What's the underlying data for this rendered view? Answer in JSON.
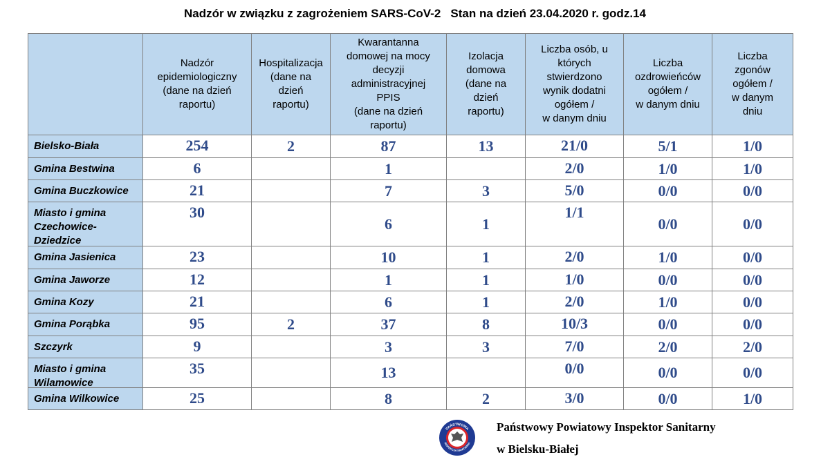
{
  "header": {
    "title": "Nadzór w związku z zagrożeniem SARS-CoV-2   Stan na dzień 23.04.2020 r. godz.14"
  },
  "table": {
    "headers": [
      "Nadzór\nepidemiologiczny\n(dane na dzień\nraportu)",
      "Hospitalizacja\n(dane na\ndzień\nraportu)",
      "Kwarantanna\ndomowej na mocy\ndecyzji\nadministracyjnej\nPPIS\n(dane na dzień\nraportu)",
      "Izolacja\ndomowa\n(dane na\ndzień\nraportu)",
      "Liczba osób, u\nktórych\nstwierdzono\nwynik dodatni\nogółem /\nw danym dniu",
      "Liczba\nozdrowieńców\nogółem /\nw danym dniu",
      "Liczba\nzgonów\nogółem /\nw danym\ndniu"
    ],
    "rows": [
      {
        "name": "Bielsko-Biała",
        "cells": [
          254,
          2,
          87,
          13,
          "21/0",
          "5/1",
          "1/0"
        ]
      },
      {
        "name": "Gmina Bestwina",
        "cells": [
          6,
          null,
          1,
          null,
          "2/0",
          "1/0",
          "1/0"
        ]
      },
      {
        "name": "Gmina Buczkowice",
        "cells": [
          21,
          null,
          7,
          3,
          "5/0",
          "0/0",
          "0/0"
        ]
      },
      {
        "name": "Miasto i gmina Czechowice-Dziedzice",
        "cells": [
          30,
          null,
          6,
          1,
          "1/1",
          "0/0",
          "0/0"
        ]
      },
      {
        "name": "Gmina Jasienica",
        "cells": [
          23,
          null,
          10,
          1,
          "2/0",
          "1/0",
          "0/0"
        ]
      },
      {
        "name": "Gmina Jaworze",
        "cells": [
          12,
          null,
          1,
          1,
          "1/0",
          "0/0",
          "0/0"
        ]
      },
      {
        "name": "Gmina Kozy",
        "cells": [
          21,
          null,
          6,
          1,
          "2/0",
          "1/0",
          "0/0"
        ]
      },
      {
        "name": "Gmina Porąbka",
        "cells": [
          95,
          2,
          37,
          8,
          "10/3",
          "0/0",
          "0/0"
        ]
      },
      {
        "name": "Szczyrk",
        "cells": [
          9,
          null,
          3,
          3,
          "7/0",
          "2/0",
          "2/0"
        ]
      },
      {
        "name": "Miasto i gmina Wilamowice",
        "cells": [
          35,
          null,
          13,
          null,
          "0/0",
          "0/0",
          "0/0"
        ]
      },
      {
        "name": "Gmina Wilkowice",
        "cells": [
          25,
          null,
          8,
          2,
          "3/0",
          "0/0",
          "1/0"
        ]
      }
    ]
  },
  "footer": {
    "logo_top": "PAŃSTWOWA",
    "logo_bottom": "INSPEKCJA SANITARNA",
    "line1": "Państwowy Powiatowy Inspektor Sanitarny",
    "line2": "w Bielsku-Białej"
  }
}
